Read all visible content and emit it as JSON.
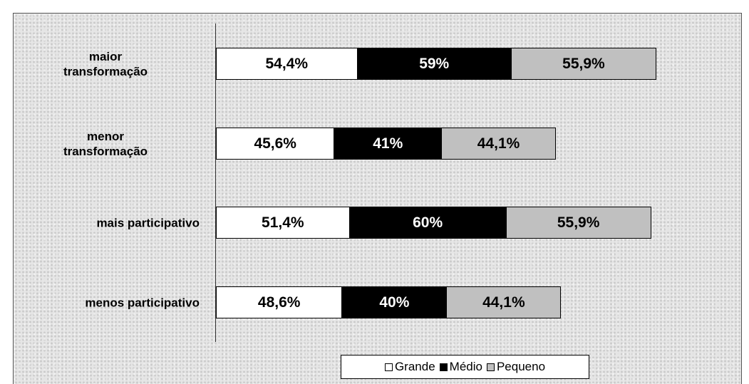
{
  "chart_data": {
    "type": "stacked-bar-horizontal",
    "categories": [
      "maior\ntransformação",
      "menor\ntransformação",
      "mais participativo",
      "menos participativo"
    ],
    "series": [
      {
        "name": "Grande",
        "color": "#ffffff",
        "values": [
          54.4,
          45.6,
          51.4,
          48.6
        ],
        "value_labels": [
          "54,4%",
          "45,6%",
          "51,4%",
          "48,6%"
        ]
      },
      {
        "name": "Médio",
        "color": "#000000",
        "values": [
          59,
          41,
          60,
          40
        ],
        "value_labels": [
          "59%",
          "41%",
          "60%",
          "40%"
        ]
      },
      {
        "name": "Pequeno",
        "color": "#c0c0c0",
        "values": [
          55.9,
          44.1,
          55.9,
          44.1
        ],
        "value_labels": [
          "55,9%",
          "44,1%",
          "55,9%",
          "44,1%"
        ]
      }
    ],
    "legend": "bottom"
  }
}
